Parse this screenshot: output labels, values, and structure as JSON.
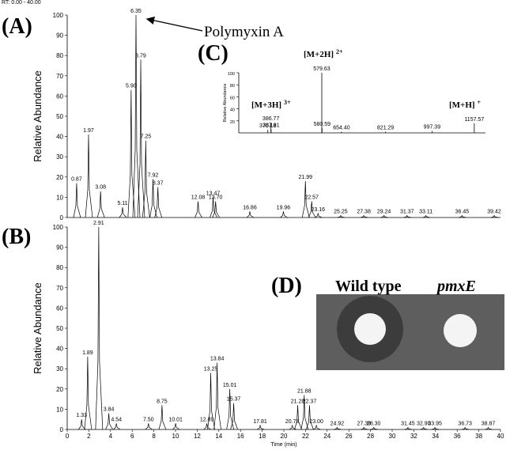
{
  "header": "RT: 0.00 - 40.00",
  "chart_data": [
    {
      "type": "chromatogram",
      "panel": "(A)",
      "ylabel": "Relative Abundance",
      "annotation": "Polymyxin A",
      "xlim": [
        0,
        40
      ],
      "ylim": [
        0,
        100
      ],
      "yticks": [
        0,
        10,
        20,
        30,
        40,
        50,
        60,
        70,
        80,
        90,
        100
      ],
      "x": [
        0.87,
        1.97,
        3.08,
        5.11,
        5.9,
        6.35,
        6.79,
        7.25,
        7.92,
        8.37,
        12.08,
        13.47,
        13.7,
        16.86,
        19.96,
        21.99,
        22.57,
        23.16,
        25.25,
        27.38,
        29.24,
        31.37,
        33.11,
        36.45,
        39.42
      ],
      "x_labels": [
        "0.87",
        "1.97",
        "3.08",
        "5.11",
        "5.90",
        "6.35",
        "6.79",
        "7.25",
        "7.92",
        "8.37",
        "12.08",
        "13.47",
        "13.70",
        "16.86",
        "19.96",
        "21.99",
        "22.57",
        "23.16",
        "25.25",
        "27.38",
        "29.24",
        "31.37",
        "33.11",
        "36.45",
        "39.42"
      ],
      "values": [
        17,
        41,
        13,
        5,
        63,
        100,
        78,
        38,
        19,
        15,
        8,
        10,
        8,
        3,
        3,
        18,
        8,
        2,
        1,
        1,
        1,
        1,
        1,
        1,
        1
      ]
    },
    {
      "type": "chromatogram",
      "panel": "(B)",
      "ylabel": "Relative Abundance",
      "xlabel": "Time (min)",
      "xlim": [
        0,
        40
      ],
      "ylim": [
        0,
        100
      ],
      "yticks": [
        0,
        10,
        20,
        30,
        40,
        50,
        60,
        70,
        80,
        90,
        100
      ],
      "xticks": [
        0,
        2,
        4,
        6,
        8,
        10,
        12,
        14,
        16,
        18,
        20,
        22,
        24,
        26,
        28,
        30,
        32,
        34,
        36,
        38,
        40
      ],
      "x": [
        1.33,
        1.89,
        2.91,
        3.84,
        4.54,
        7.5,
        8.75,
        10.01,
        12.89,
        13.25,
        13.84,
        15.01,
        15.37,
        17.81,
        20.78,
        21.28,
        21.88,
        22.37,
        23.0,
        24.92,
        27.39,
        28.3,
        31.45,
        32.9,
        33.95,
        36.73,
        38.87
      ],
      "x_labels": [
        "1.33",
        "1.89",
        "2.91",
        "3.84",
        "4.54",
        "7.50",
        "8.75",
        "10.01",
        "12.89",
        "13.25",
        "13.84",
        "15.01",
        "15.37",
        "17.81",
        "20.78",
        "21.28",
        "21.88",
        "22.37",
        "23.00",
        "24.92",
        "27.39",
        "28.30",
        "31.45",
        "32.90",
        "33.95",
        "36.73",
        "38.87"
      ],
      "values": [
        5,
        36,
        100,
        8,
        3,
        3,
        12,
        3,
        3,
        28,
        33,
        20,
        13,
        2,
        2,
        12,
        17,
        12,
        2,
        1,
        1,
        1,
        1,
        1,
        1,
        1,
        1
      ]
    },
    {
      "type": "spectrum",
      "panel": "(C)",
      "ylabel": "Relative Abundance",
      "xlim": [
        265,
        1200
      ],
      "ylim": [
        0,
        100
      ],
      "yticks": [
        20,
        40,
        60,
        80,
        100
      ],
      "x": [
        375.18,
        386.77,
        387.61,
        579.63,
        580.59,
        654.4,
        821.29,
        997.39,
        1157.57
      ],
      "x_labels": [
        "375.18",
        "386.77",
        "387.61",
        "579.63",
        "580.59",
        "654.40",
        "821.29",
        "997.39",
        "1157.57"
      ],
      "values": [
        5,
        17,
        6,
        100,
        8,
        2,
        2,
        3,
        16
      ],
      "annotations": [
        [
          "[M+3H]",
          "3+"
        ],
        [
          "[M+2H]",
          "2+"
        ],
        [
          "[M+H]",
          "+"
        ]
      ]
    }
  ],
  "photo": {
    "label": "(D)",
    "captions": [
      "Wild type",
      "pmxE"
    ]
  }
}
